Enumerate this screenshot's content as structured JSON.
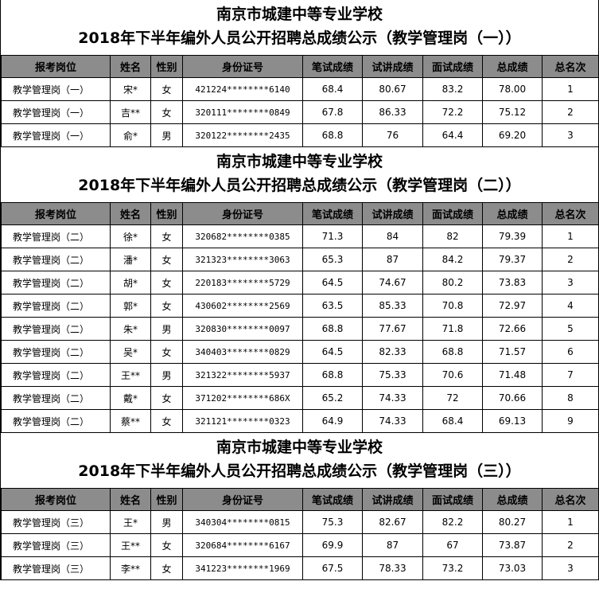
{
  "headers": [
    "报考岗位",
    "姓名",
    "性别",
    "身份证号",
    "笔试成绩",
    "试讲成绩",
    "面试成绩",
    "总成绩",
    "总名次"
  ],
  "colors": {
    "header_bg": "#8c8c8c",
    "border": "#000000"
  },
  "sections": [
    {
      "title_line1": "南京市城建中等专业学校",
      "title_line2": "2018年下半年编外人员公开招聘总成绩公示（教学管理岗（一））",
      "rows": [
        [
          "教学管理岗（一）",
          "宋*",
          "女",
          "421224********6140",
          "68.4",
          "80.67",
          "83.2",
          "78.00",
          "1"
        ],
        [
          "教学管理岗（一）",
          "吉**",
          "女",
          "320111********0849",
          "67.8",
          "86.33",
          "72.2",
          "75.12",
          "2"
        ],
        [
          "教学管理岗（一）",
          "俞*",
          "男",
          "320122********2435",
          "68.8",
          "76",
          "64.4",
          "69.20",
          "3"
        ]
      ]
    },
    {
      "title_line1": "南京市城建中等专业学校",
      "title_line2": "2018年下半年编外人员公开招聘总成绩公示（教学管理岗（二））",
      "rows": [
        [
          "教学管理岗（二）",
          "徐*",
          "女",
          "320682********0385",
          "71.3",
          "84",
          "82",
          "79.39",
          "1"
        ],
        [
          "教学管理岗（二）",
          "潘*",
          "女",
          "321323********3063",
          "65.3",
          "87",
          "84.2",
          "79.37",
          "2"
        ],
        [
          "教学管理岗（二）",
          "胡*",
          "女",
          "220183********5729",
          "64.5",
          "74.67",
          "80.2",
          "73.83",
          "3"
        ],
        [
          "教学管理岗（二）",
          "郭*",
          "女",
          "430602********2569",
          "63.5",
          "85.33",
          "70.8",
          "72.97",
          "4"
        ],
        [
          "教学管理岗（二）",
          "朱*",
          "男",
          "320830********0097",
          "68.8",
          "77.67",
          "71.8",
          "72.66",
          "5"
        ],
        [
          "教学管理岗（二）",
          "吴*",
          "女",
          "340403********0829",
          "64.5",
          "82.33",
          "68.8",
          "71.57",
          "6"
        ],
        [
          "教学管理岗（二）",
          "王**",
          "男",
          "321322********5937",
          "68.8",
          "75.33",
          "70.6",
          "71.48",
          "7"
        ],
        [
          "教学管理岗（二）",
          "戴*",
          "女",
          "371202********686X",
          "65.2",
          "74.33",
          "72",
          "70.66",
          "8"
        ],
        [
          "教学管理岗（二）",
          "蔡**",
          "女",
          "321121********0323",
          "64.9",
          "74.33",
          "68.4",
          "69.13",
          "9"
        ]
      ]
    },
    {
      "title_line1": "南京市城建中等专业学校",
      "title_line2": "2018年下半年编外人员公开招聘总成绩公示（教学管理岗（三））",
      "rows": [
        [
          "教学管理岗（三）",
          "王*",
          "男",
          "340304********0815",
          "75.3",
          "82.67",
          "82.2",
          "80.27",
          "1"
        ],
        [
          "教学管理岗（三）",
          "王**",
          "女",
          "320684********6167",
          "69.9",
          "87",
          "67",
          "73.87",
          "2"
        ],
        [
          "教学管理岗（三）",
          "李**",
          "女",
          "341223********1969",
          "67.5",
          "78.33",
          "73.2",
          "73.03",
          "3"
        ]
      ]
    }
  ]
}
